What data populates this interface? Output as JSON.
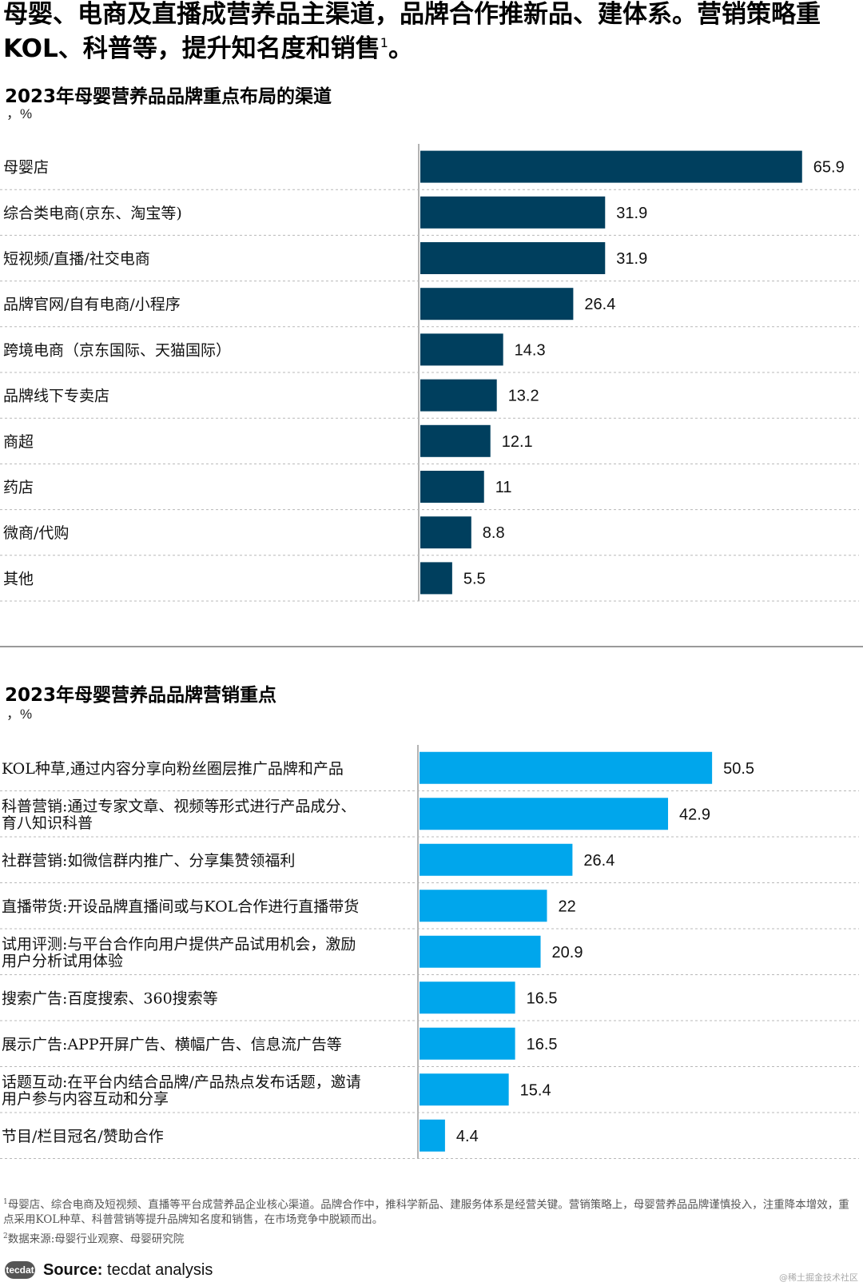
{
  "headline": {
    "text": "母婴、电商及直播成营养品主渠道，品牌合作推新品、建体系。营销策略重KOL、科普等，提升知名度和销售",
    "footnote_mark": "1",
    "end": "。"
  },
  "chart_data": [
    {
      "type": "bar",
      "orientation": "horizontal",
      "title": "2023年母婴营养品品牌重点布局的渠道",
      "unit": "，%",
      "bar_color": "#003f5e",
      "categories": [
        "母婴店",
        "综合类电商(京东、淘宝等)",
        "短视频/直播/社交电商",
        "品牌官网/自有电商/小程序",
        "跨境电商（京东国际、天猫国际）",
        "品牌线下专卖店",
        "商超",
        "药店",
        "微商/代购",
        "其他"
      ],
      "values": [
        "65.9",
        "31.9",
        "31.9",
        "26.4",
        "14.3",
        "13.2",
        "12.1",
        "11",
        "8.8",
        "5.5"
      ],
      "xlim": [
        0,
        66
      ]
    },
    {
      "type": "bar",
      "orientation": "horizontal",
      "title": "2023年母婴营养品品牌营销重点",
      "unit": "，%",
      "bar_color": "#00a6ec",
      "categories": [
        [
          "KOL种草,通过内容分享向粉丝圈层推广品牌和产品"
        ],
        [
          "科普营销:通过专家文章、视频等形式进行产品成分、",
          "育八知识科普"
        ],
        [
          "社群营销:如微信群内推广、分享集赞领福利"
        ],
        [
          "直播带货:开设品牌直播间或与KOL合作进行直播带货"
        ],
        [
          "试用评测:与平台合作向用户提供产品试用机会，激励",
          "用户分析试用体验"
        ],
        [
          "搜索广告:百度搜索、360搜索等"
        ],
        [
          "展示广告:APP开屏广告、横幅广告、信息流广告等"
        ],
        [
          "话题互动:在平台内结合品牌/产品热点发布话题，邀请",
          "用户参与内容互动和分享"
        ],
        [
          "节目/栏目冠名/赞助合作"
        ]
      ],
      "values": [
        "50.5",
        "42.9",
        "26.4",
        "22",
        "20.9",
        "16.5",
        "16.5",
        "15.4",
        "4.4"
      ],
      "xlim": [
        0,
        66
      ]
    }
  ],
  "footnotes": {
    "note1_mark": "1",
    "note1": "母婴店、综合电商及短视频、直播等平台成营养品企业核心渠道。品牌合作中，推科学新品、建服务体系是经营关键。营销策略上，母婴营养品品牌谨慎投入，注重降本增效，重点采用KOL种草、科普营销等提升品牌知名度和销售，在市场竞争中脱颖而出。",
    "note2_mark": "2",
    "note2": "数据来源:母婴行业观察、母婴研究院"
  },
  "source": {
    "logo_text": "tecdat",
    "label": "Source:",
    "text": " tecdat analysis"
  },
  "watermark": "@稀土掘金技术社区"
}
